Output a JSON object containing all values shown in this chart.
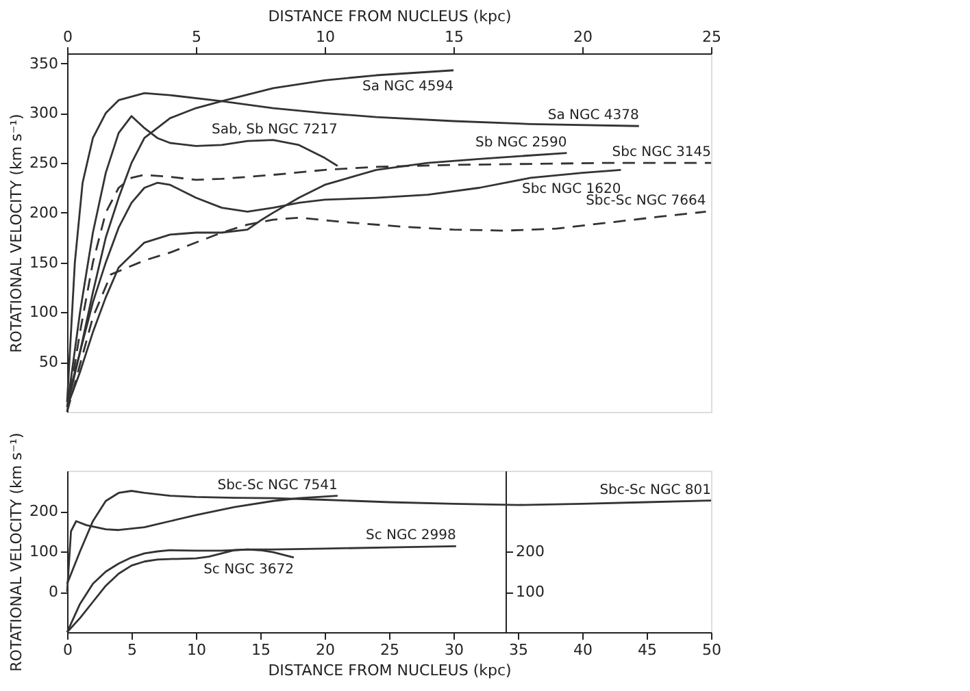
{
  "chart_data": [
    {
      "type": "line",
      "xlabel": "DISTANCE FROM NUCLEUS (kpc)",
      "ylabel": "ROTATIONAL VELOCITY (km s⁻¹)",
      "xlim": [
        0,
        25
      ],
      "xticks": [
        0,
        5,
        10,
        15,
        20,
        25
      ],
      "ylim": [
        0,
        360
      ],
      "yticks": [
        50,
        100,
        150,
        200,
        250,
        300,
        350
      ],
      "grid": false,
      "series": [
        {
          "name": "Sa  NGC 4594",
          "color": "#333333",
          "line_style": "solid",
          "x": [
            0,
            0.5,
            1,
            1.5,
            2,
            2.5,
            3,
            4,
            5,
            6,
            8,
            10,
            12,
            15
          ],
          "values": [
            10,
            60,
            120,
            175,
            215,
            250,
            275,
            295,
            305,
            312,
            325,
            333,
            338,
            343
          ]
        },
        {
          "name": "Sa  NGC 4378",
          "color": "#333333",
          "line_style": "solid",
          "x": [
            0,
            0.3,
            0.6,
            1,
            1.5,
            2,
            3,
            4,
            6,
            8,
            10,
            12,
            15,
            18,
            22.2
          ],
          "values": [
            10,
            150,
            230,
            275,
            300,
            313,
            320,
            318,
            312,
            305,
            300,
            296,
            292,
            289,
            287
          ]
        },
        {
          "name": "Sab, Sb  NGC 7217",
          "color": "#333333",
          "line_style": "solid",
          "x": [
            0,
            0.5,
            1,
            1.5,
            2,
            2.5,
            3,
            3.5,
            4,
            5,
            6,
            7,
            8,
            9,
            10,
            10.5
          ],
          "values": [
            5,
            100,
            180,
            240,
            280,
            297,
            285,
            275,
            270,
            267,
            268,
            272,
            273,
            268,
            255,
            247
          ]
        },
        {
          "name": "Sb  NGC 2590",
          "color": "#333333",
          "line_style": "solid",
          "x": [
            0,
            0.5,
            1,
            1.5,
            2,
            3,
            4,
            5,
            6,
            7,
            7.5,
            8,
            9,
            10,
            12,
            14,
            16,
            19.4
          ],
          "values": [
            5,
            40,
            80,
            115,
            145,
            170,
            178,
            180,
            180,
            183,
            192,
            200,
            215,
            228,
            243,
            250,
            254,
            260
          ]
        },
        {
          "name": "Sbc  NGC 3145",
          "color": "#333333",
          "line_style": "dashed",
          "x": [
            0,
            0.5,
            1,
            1.5,
            2,
            2.5,
            3,
            4,
            5,
            6,
            8,
            10,
            12,
            15,
            18,
            21,
            25
          ],
          "values": [
            0,
            80,
            150,
            200,
            225,
            235,
            238,
            236,
            233,
            234,
            238,
            243,
            246,
            248,
            249,
            250,
            250
          ]
        },
        {
          "name": "Sbc  NGC 1620",
          "color": "#333333",
          "line_style": "solid",
          "x": [
            0,
            0.5,
            1,
            1.5,
            2,
            2.5,
            3,
            3.5,
            4,
            5,
            6,
            7,
            8,
            9,
            10,
            12,
            14,
            16,
            18,
            20,
            21.5
          ],
          "values": [
            5,
            60,
            110,
            150,
            185,
            210,
            225,
            230,
            228,
            215,
            205,
            201,
            205,
            210,
            213,
            215,
            218,
            225,
            235,
            240,
            243
          ]
        },
        {
          "name": "Sbc-Sc  NGC 7664",
          "color": "#333333",
          "line_style": "dashed",
          "x": [
            0,
            1,
            1.7,
            3,
            4,
            5,
            6,
            7,
            8,
            9,
            11,
            13,
            15,
            17,
            19,
            21,
            23,
            24.8
          ],
          "values": [
            0,
            95,
            138,
            152,
            160,
            170,
            180,
            188,
            193,
            195,
            190,
            186,
            183,
            182,
            184,
            190,
            196,
            201
          ]
        }
      ]
    },
    {
      "type": "line",
      "xlabel": "DISTANCE FROM NUCLEUS    (kpc)",
      "ylabel": "ROTATIONAL VELOCITY (km s⁻¹)",
      "xlim": [
        0,
        50
      ],
      "xticks": [
        0,
        5,
        10,
        15,
        20,
        25,
        30,
        35,
        40,
        45,
        50
      ],
      "ylim": [
        -100,
        300
      ],
      "yticks": [
        0,
        100,
        200
      ],
      "y2lim": [
        0,
        400
      ],
      "y2ticks": [
        100,
        200
      ],
      "grid": false,
      "series": [
        {
          "name": "Sbc-Sc  NGC 801",
          "color": "#333333",
          "line_style": "solid",
          "x": [
            0,
            1,
            2,
            3,
            4,
            5,
            6,
            8,
            10,
            13,
            16,
            20,
            25,
            30,
            35,
            40,
            45,
            50
          ],
          "values": [
            20,
            100,
            175,
            225,
            245,
            250,
            245,
            238,
            235,
            233,
            232,
            228,
            222,
            218,
            215,
            218,
            222,
            226
          ]
        },
        {
          "name": "Sbc-Sc  NGC 7541",
          "color": "#333333",
          "line_style": "solid",
          "x": [
            0,
            0.3,
            0.7,
            1.5,
            3,
            4,
            6,
            8,
            10,
            13,
            16,
            18,
            21
          ],
          "values": [
            0,
            150,
            175,
            165,
            155,
            153,
            160,
            175,
            190,
            210,
            225,
            232,
            238
          ]
        },
        {
          "name": "Sc  NGC 2998",
          "color": "#333333",
          "line_style": "solid",
          "axis": "y2",
          "x": [
            0,
            1,
            2,
            3,
            4,
            5,
            6,
            7,
            8,
            10,
            12,
            14,
            16,
            20,
            25,
            30.2
          ],
          "values": [
            0,
            70,
            120,
            150,
            170,
            185,
            195,
            200,
            203,
            202,
            202,
            205,
            205,
            207,
            210,
            213
          ]
        },
        {
          "name": "Sc  NGC 3672",
          "color": "#333333",
          "line_style": "solid",
          "axis": "y2",
          "x": [
            0,
            1,
            2,
            3,
            4,
            5,
            6,
            7,
            8,
            10,
            11,
            12,
            13,
            14,
            15,
            16,
            17.6
          ],
          "values": [
            0,
            35,
            75,
            115,
            145,
            165,
            175,
            180,
            181,
            183,
            187,
            195,
            203,
            205,
            203,
            198,
            185
          ]
        }
      ]
    }
  ]
}
